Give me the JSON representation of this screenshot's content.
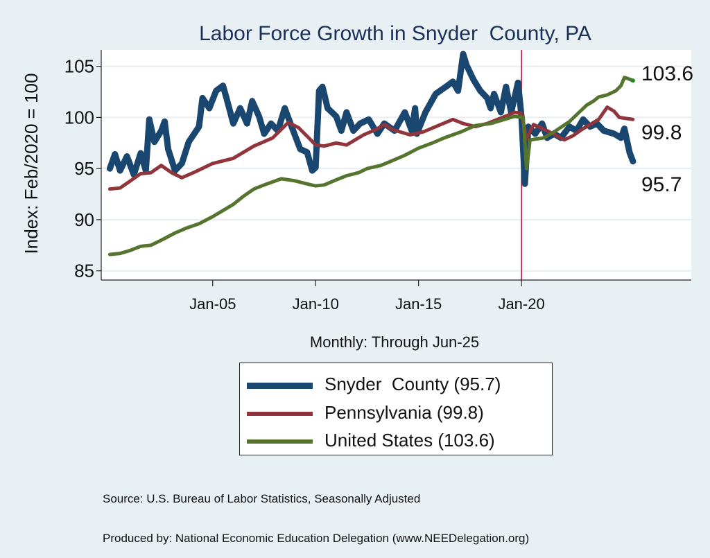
{
  "chart_data": {
    "type": "line",
    "title": "Labor Force Growth in Snyder  County, PA",
    "xlabel": "Monthly: Through Jun-25",
    "ylabel": "Index: Feb/2020 = 100",
    "x_unit": "months since Jan-2000",
    "xlim": [
      -5,
      339
    ],
    "ylim": [
      84.1,
      106.6
    ],
    "yticks": [
      85,
      90,
      95,
      100,
      105
    ],
    "xticks": [
      {
        "label": "Jan-05",
        "month": 60
      },
      {
        "label": "Jan-10",
        "month": 120
      },
      {
        "label": "Jan-15",
        "month": 180
      },
      {
        "label": "Jan-20",
        "month": 240
      }
    ],
    "reference_line": {
      "month": 240,
      "color": "#c0143c"
    },
    "grid": true,
    "legend_position": "bottom",
    "series": [
      {
        "name": "Snyder  County",
        "legend_label": "Snyder  County (95.7)",
        "end_label": "95.7",
        "color": "#1a476f",
        "points": [
          [
            0,
            95.0
          ],
          [
            3,
            96.4
          ],
          [
            6,
            94.8
          ],
          [
            10,
            96.2
          ],
          [
            14,
            94.4
          ],
          [
            18,
            96.5
          ],
          [
            21,
            94.8
          ],
          [
            23,
            99.8
          ],
          [
            26,
            97.6
          ],
          [
            30,
            98.7
          ],
          [
            32,
            99.6
          ],
          [
            34,
            96.9
          ],
          [
            38,
            94.8
          ],
          [
            42,
            95.5
          ],
          [
            46,
            97.6
          ],
          [
            52,
            99.1
          ],
          [
            54,
            101.9
          ],
          [
            58,
            100.9
          ],
          [
            62,
            102.6
          ],
          [
            66,
            103.1
          ],
          [
            68,
            101.9
          ],
          [
            72,
            99.4
          ],
          [
            76,
            100.9
          ],
          [
            80,
            99.4
          ],
          [
            83,
            101.6
          ],
          [
            87,
            100.1
          ],
          [
            90,
            98.4
          ],
          [
            94,
            99.4
          ],
          [
            98,
            98.7
          ],
          [
            102,
            100.9
          ],
          [
            106,
            99.1
          ],
          [
            111,
            96.9
          ],
          [
            115,
            96.6
          ],
          [
            118,
            94.8
          ],
          [
            120,
            95.1
          ],
          [
            122,
            102.6
          ],
          [
            124,
            103.0
          ],
          [
            127,
            100.9
          ],
          [
            132,
            100.1
          ],
          [
            135,
            98.7
          ],
          [
            138,
            100.5
          ],
          [
            142,
            98.7
          ],
          [
            146,
            99.4
          ],
          [
            151,
            99.8
          ],
          [
            156,
            98.4
          ],
          [
            160,
            99.4
          ],
          [
            166,
            98.7
          ],
          [
            172,
            100.5
          ],
          [
            176,
            98.7
          ],
          [
            178,
            100.9
          ],
          [
            179,
            98.4
          ],
          [
            184,
            100.5
          ],
          [
            190,
            102.3
          ],
          [
            196,
            103.0
          ],
          [
            200,
            103.5
          ],
          [
            203,
            102.6
          ],
          [
            206,
            106.2
          ],
          [
            208,
            105.1
          ],
          [
            212,
            103.7
          ],
          [
            216,
            102.6
          ],
          [
            220,
            101.9
          ],
          [
            222,
            100.9
          ],
          [
            224,
            102.3
          ],
          [
            228,
            100.5
          ],
          [
            231,
            103.0
          ],
          [
            234,
            100.5
          ],
          [
            238,
            103.4
          ],
          [
            240,
            100.1
          ],
          [
            242,
            93.5
          ],
          [
            244,
            99.1
          ],
          [
            248,
            98.4
          ],
          [
            252,
            99.4
          ],
          [
            255,
            98.0
          ],
          [
            259,
            98.4
          ],
          [
            263,
            98.0
          ],
          [
            268,
            99.1
          ],
          [
            272,
            98.7
          ],
          [
            276,
            99.8
          ],
          [
            280,
            99.1
          ],
          [
            284,
            99.4
          ],
          [
            288,
            98.7
          ],
          [
            294,
            98.4
          ],
          [
            298,
            98.0
          ],
          [
            300,
            98.9
          ],
          [
            303,
            96.6
          ],
          [
            305,
            95.7
          ]
        ]
      },
      {
        "name": "Pennsylvania",
        "legend_label": "Pennsylvania (99.8)",
        "end_label": "99.8",
        "color": "#90353b",
        "points": [
          [
            0,
            93.0
          ],
          [
            6,
            93.1
          ],
          [
            12,
            93.8
          ],
          [
            18,
            94.5
          ],
          [
            24,
            94.6
          ],
          [
            30,
            95.3
          ],
          [
            36,
            94.6
          ],
          [
            42,
            94.1
          ],
          [
            50,
            94.7
          ],
          [
            60,
            95.5
          ],
          [
            72,
            96.0
          ],
          [
            84,
            97.2
          ],
          [
            95,
            98.0
          ],
          [
            104,
            99.5
          ],
          [
            110,
            99.0
          ],
          [
            116,
            98.0
          ],
          [
            120,
            97.3
          ],
          [
            125,
            97.2
          ],
          [
            132,
            97.5
          ],
          [
            138,
            97.3
          ],
          [
            148,
            98.3
          ],
          [
            155,
            98.8
          ],
          [
            160,
            99.3
          ],
          [
            165,
            98.8
          ],
          [
            175,
            98.3
          ],
          [
            183,
            98.6
          ],
          [
            190,
            99.1
          ],
          [
            200,
            99.8
          ],
          [
            206,
            99.4
          ],
          [
            213,
            99.1
          ],
          [
            220,
            99.4
          ],
          [
            226,
            99.8
          ],
          [
            232,
            100.2
          ],
          [
            236,
            100.5
          ],
          [
            240,
            100.4
          ],
          [
            243,
            97.9
          ],
          [
            247,
            99.3
          ],
          [
            255,
            98.7
          ],
          [
            265,
            97.8
          ],
          [
            270,
            98.2
          ],
          [
            275,
            98.8
          ],
          [
            280,
            99.3
          ],
          [
            285,
            99.8
          ],
          [
            290,
            101.0
          ],
          [
            294,
            100.6
          ],
          [
            297,
            100.0
          ],
          [
            301,
            99.9
          ],
          [
            305,
            99.8
          ]
        ]
      },
      {
        "name": "United States",
        "legend_label": "United States (103.6)",
        "end_label": "103.6",
        "color": "#55752f",
        "points": [
          [
            0,
            86.6
          ],
          [
            6,
            86.7
          ],
          [
            12,
            87.0
          ],
          [
            18,
            87.4
          ],
          [
            24,
            87.5
          ],
          [
            30,
            88.0
          ],
          [
            38,
            88.7
          ],
          [
            45,
            89.2
          ],
          [
            52,
            89.6
          ],
          [
            60,
            90.3
          ],
          [
            66,
            90.9
          ],
          [
            72,
            91.5
          ],
          [
            78,
            92.3
          ],
          [
            84,
            93.0
          ],
          [
            90,
            93.4
          ],
          [
            100,
            94.0
          ],
          [
            108,
            93.8
          ],
          [
            115,
            93.5
          ],
          [
            120,
            93.3
          ],
          [
            125,
            93.4
          ],
          [
            132,
            93.9
          ],
          [
            138,
            94.3
          ],
          [
            145,
            94.6
          ],
          [
            150,
            95.0
          ],
          [
            158,
            95.3
          ],
          [
            165,
            95.8
          ],
          [
            172,
            96.3
          ],
          [
            180,
            97.0
          ],
          [
            188,
            97.5
          ],
          [
            195,
            98.0
          ],
          [
            205,
            98.6
          ],
          [
            213,
            99.2
          ],
          [
            222,
            99.4
          ],
          [
            230,
            99.8
          ],
          [
            236,
            100.1
          ],
          [
            241,
            100.0
          ],
          [
            243,
            95.0
          ],
          [
            245,
            97.8
          ],
          [
            249,
            97.9
          ],
          [
            253,
            98.0
          ],
          [
            260,
            98.7
          ],
          [
            268,
            99.6
          ],
          [
            273,
            100.4
          ],
          [
            278,
            101.2
          ],
          [
            282,
            101.6
          ],
          [
            285,
            102.0
          ],
          [
            290,
            102.2
          ],
          [
            295,
            102.6
          ],
          [
            298,
            103.1
          ],
          [
            300,
            103.9
          ],
          [
            302,
            103.8
          ],
          [
            305,
            103.6
          ]
        ]
      }
    ]
  },
  "source_lines": [
    "Source: U.S. Bureau of Labor Statistics, Seasonally Adjusted",
    "Produced by: National Economic Education Delegation (www.NEEDelegation.org)"
  ]
}
